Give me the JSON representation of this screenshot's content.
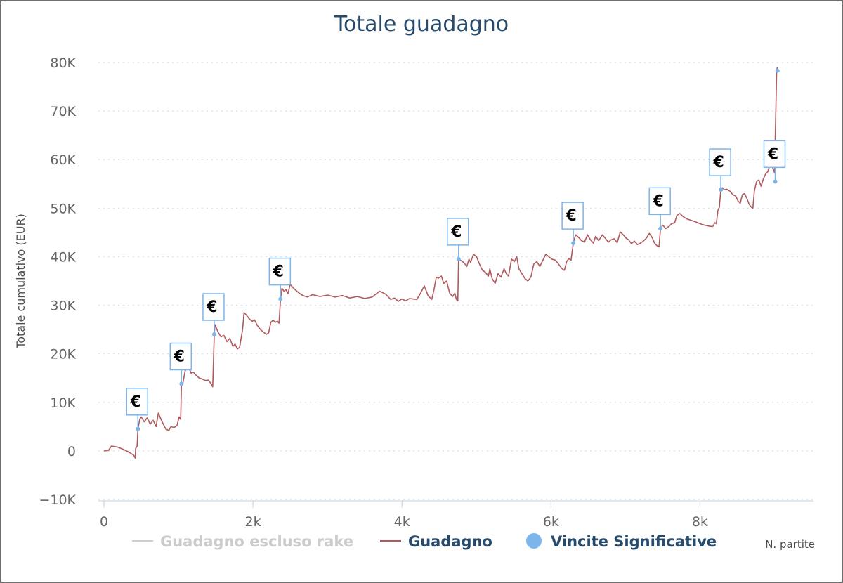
{
  "chart_data": {
    "type": "line",
    "title": "Totale guadagno",
    "xlabel": "N. partite",
    "ylabel": "Totale cumulativo (EUR)",
    "xlim": [
      0,
      9500
    ],
    "ylim": [
      -10000,
      80000
    ],
    "x_ticks": [
      0,
      2000,
      4000,
      6000,
      8000
    ],
    "x_tick_labels": [
      "0",
      "2k",
      "4k",
      "6k",
      "8k"
    ],
    "y_ticks": [
      -10000,
      0,
      10000,
      20000,
      30000,
      40000,
      50000,
      60000,
      70000,
      80000
    ],
    "y_tick_labels": [
      "−10K",
      "0",
      "10K",
      "20K",
      "30K",
      "40K",
      "50K",
      "60K",
      "70K",
      "80K"
    ],
    "grid": true,
    "legend_position": "bottom",
    "legend": [
      {
        "name": "Guadagno escluso rake",
        "color": "#cccccc",
        "symbol": "line",
        "hidden": true
      },
      {
        "name": "Guadagno",
        "color": "#b15a5d",
        "symbol": "line"
      },
      {
        "name": "Vincite Significative",
        "color": "#7cb5ec",
        "symbol": "circle"
      }
    ],
    "series": [
      {
        "name": "Guadagno",
        "color": "#b15a5d",
        "points": [
          [
            0,
            0
          ],
          [
            60,
            100
          ],
          [
            100,
            1000
          ],
          [
            180,
            800
          ],
          [
            260,
            300
          ],
          [
            340,
            -300
          ],
          [
            400,
            -900
          ],
          [
            420,
            -1500
          ],
          [
            425,
            500
          ],
          [
            445,
            1000
          ],
          [
            455,
            4500
          ],
          [
            480,
            6500
          ],
          [
            500,
            7000
          ],
          [
            540,
            6000
          ],
          [
            580,
            6800
          ],
          [
            620,
            5500
          ],
          [
            660,
            6300
          ],
          [
            700,
            5000
          ],
          [
            730,
            7800
          ],
          [
            780,
            6000
          ],
          [
            830,
            4500
          ],
          [
            870,
            4200
          ],
          [
            900,
            5000
          ],
          [
            940,
            4800
          ],
          [
            980,
            5200
          ],
          [
            1010,
            7000
          ],
          [
            1030,
            6500
          ],
          [
            1040,
            13800
          ],
          [
            1060,
            14000
          ],
          [
            1090,
            16500
          ],
          [
            1130,
            17500
          ],
          [
            1170,
            16000
          ],
          [
            1200,
            16200
          ],
          [
            1240,
            15500
          ],
          [
            1280,
            15000
          ],
          [
            1320,
            14800
          ],
          [
            1360,
            14500
          ],
          [
            1400,
            14600
          ],
          [
            1440,
            13800
          ],
          [
            1460,
            13200
          ],
          [
            1480,
            24000
          ],
          [
            1490,
            26000
          ],
          [
            1530,
            24500
          ],
          [
            1570,
            23500
          ],
          [
            1610,
            23800
          ],
          [
            1650,
            22500
          ],
          [
            1690,
            23200
          ],
          [
            1730,
            21500
          ],
          [
            1760,
            22000
          ],
          [
            1790,
            21000
          ],
          [
            1820,
            21300
          ],
          [
            1860,
            25000
          ],
          [
            1880,
            28500
          ],
          [
            1910,
            28000
          ],
          [
            1950,
            27200
          ],
          [
            1990,
            26700
          ],
          [
            2020,
            27000
          ],
          [
            2060,
            25800
          ],
          [
            2100,
            25000
          ],
          [
            2140,
            24500
          ],
          [
            2180,
            24000
          ],
          [
            2210,
            24300
          ],
          [
            2240,
            26500
          ],
          [
            2270,
            26900
          ],
          [
            2300,
            26500
          ],
          [
            2330,
            26700
          ],
          [
            2350,
            26300
          ],
          [
            2370,
            31300
          ],
          [
            2390,
            33500
          ],
          [
            2420,
            32800
          ],
          [
            2440,
            33300
          ],
          [
            2470,
            32400
          ],
          [
            2500,
            34300
          ],
          [
            2540,
            33600
          ],
          [
            2580,
            33000
          ],
          [
            2620,
            32500
          ],
          [
            2670,
            32000
          ],
          [
            2730,
            31700
          ],
          [
            2800,
            32200
          ],
          [
            2900,
            31800
          ],
          [
            3000,
            32100
          ],
          [
            3100,
            31700
          ],
          [
            3200,
            32000
          ],
          [
            3300,
            31500
          ],
          [
            3400,
            31800
          ],
          [
            3500,
            31400
          ],
          [
            3600,
            31700
          ],
          [
            3700,
            32900
          ],
          [
            3780,
            32300
          ],
          [
            3850,
            31200
          ],
          [
            3900,
            31500
          ],
          [
            3950,
            30800
          ],
          [
            4000,
            31300
          ],
          [
            4050,
            30900
          ],
          [
            4100,
            31400
          ],
          [
            4200,
            31200
          ],
          [
            4250,
            32500
          ],
          [
            4300,
            34000
          ],
          [
            4350,
            32000
          ],
          [
            4400,
            31200
          ],
          [
            4430,
            33200
          ],
          [
            4460,
            35800
          ],
          [
            4490,
            35600
          ],
          [
            4530,
            36000
          ],
          [
            4560,
            34500
          ],
          [
            4600,
            35000
          ],
          [
            4640,
            32500
          ],
          [
            4680,
            31800
          ],
          [
            4710,
            32500
          ],
          [
            4730,
            31200
          ],
          [
            4750,
            30900
          ],
          [
            4760,
            39500
          ],
          [
            4790,
            39200
          ],
          [
            4830,
            38800
          ],
          [
            4870,
            38000
          ],
          [
            4900,
            39500
          ],
          [
            4920,
            38800
          ],
          [
            4960,
            40500
          ],
          [
            5000,
            40000
          ],
          [
            5040,
            38500
          ],
          [
            5080,
            37200
          ],
          [
            5120,
            36800
          ],
          [
            5160,
            36000
          ],
          [
            5180,
            37500
          ],
          [
            5210,
            35500
          ],
          [
            5250,
            34500
          ],
          [
            5290,
            36500
          ],
          [
            5330,
            35800
          ],
          [
            5370,
            37500
          ],
          [
            5400,
            36500
          ],
          [
            5430,
            36000
          ],
          [
            5470,
            39500
          ],
          [
            5510,
            39000
          ],
          [
            5540,
            40000
          ],
          [
            5570,
            37500
          ],
          [
            5610,
            36500
          ],
          [
            5650,
            35500
          ],
          [
            5690,
            35000
          ],
          [
            5730,
            35800
          ],
          [
            5770,
            38500
          ],
          [
            5810,
            39000
          ],
          [
            5850,
            38000
          ],
          [
            5890,
            39200
          ],
          [
            5930,
            40500
          ],
          [
            5970,
            40000
          ],
          [
            6010,
            39500
          ],
          [
            6060,
            39300
          ],
          [
            6100,
            38500
          ],
          [
            6150,
            37500
          ],
          [
            6180,
            37200
          ],
          [
            6210,
            39000
          ],
          [
            6240,
            39600
          ],
          [
            6270,
            39300
          ],
          [
            6300,
            42800
          ],
          [
            6330,
            44500
          ],
          [
            6370,
            44000
          ],
          [
            6410,
            43300
          ],
          [
            6450,
            43000
          ],
          [
            6490,
            44500
          ],
          [
            6530,
            43500
          ],
          [
            6570,
            42800
          ],
          [
            6600,
            44200
          ],
          [
            6640,
            43300
          ],
          [
            6690,
            44500
          ],
          [
            6730,
            43800
          ],
          [
            6770,
            43000
          ],
          [
            6810,
            43500
          ],
          [
            6850,
            43700
          ],
          [
            6890,
            42900
          ],
          [
            6930,
            45100
          ],
          [
            6970,
            44500
          ],
          [
            7010,
            43800
          ],
          [
            7040,
            43500
          ],
          [
            7080,
            42700
          ],
          [
            7120,
            43200
          ],
          [
            7160,
            42500
          ],
          [
            7200,
            42800
          ],
          [
            7240,
            43200
          ],
          [
            7280,
            43800
          ],
          [
            7320,
            44800
          ],
          [
            7360,
            43900
          ],
          [
            7390,
            42800
          ],
          [
            7420,
            42300
          ],
          [
            7450,
            42000
          ],
          [
            7470,
            45800
          ],
          [
            7500,
            46500
          ],
          [
            7540,
            45800
          ],
          [
            7580,
            46200
          ],
          [
            7620,
            46800
          ],
          [
            7660,
            47000
          ],
          [
            7690,
            48500
          ],
          [
            7730,
            48900
          ],
          [
            7770,
            48300
          ],
          [
            7820,
            47800
          ],
          [
            7880,
            47500
          ],
          [
            7940,
            47200
          ],
          [
            8000,
            46800
          ],
          [
            8060,
            46500
          ],
          [
            8120,
            46300
          ],
          [
            8170,
            46200
          ],
          [
            8200,
            47000
          ],
          [
            8220,
            46800
          ],
          [
            8240,
            49500
          ],
          [
            8260,
            50200
          ],
          [
            8280,
            53800
          ],
          [
            8300,
            54200
          ],
          [
            8330,
            53800
          ],
          [
            8360,
            53900
          ],
          [
            8400,
            53500
          ],
          [
            8440,
            52800
          ],
          [
            8480,
            52500
          ],
          [
            8510,
            51500
          ],
          [
            8540,
            51000
          ],
          [
            8570,
            52800
          ],
          [
            8600,
            53000
          ],
          [
            8630,
            52000
          ],
          [
            8660,
            50800
          ],
          [
            8690,
            50200
          ],
          [
            8710,
            50000
          ],
          [
            8730,
            53500
          ],
          [
            8760,
            55500
          ],
          [
            8790,
            55800
          ],
          [
            8820,
            54500
          ],
          [
            8850,
            56000
          ],
          [
            8880,
            57000
          ],
          [
            8910,
            57500
          ],
          [
            8940,
            59000
          ],
          [
            8970,
            58500
          ],
          [
            8990,
            57800
          ],
          [
            9000,
            57300
          ],
          [
            9010,
            64000
          ],
          [
            9030,
            78500
          ],
          [
            9040,
            79000
          ]
        ]
      },
      {
        "name": "Vincite Significative",
        "color": "#7cb5ec",
        "points": [
          [
            455,
            4500
          ],
          [
            1040,
            13800
          ],
          [
            1480,
            24000
          ],
          [
            2370,
            31300
          ],
          [
            4760,
            39500
          ],
          [
            6300,
            42800
          ],
          [
            7470,
            45800
          ],
          [
            8280,
            53800
          ],
          [
            9010,
            55500
          ],
          [
            9040,
            78300
          ]
        ],
        "flag_text": "€"
      }
    ]
  }
}
